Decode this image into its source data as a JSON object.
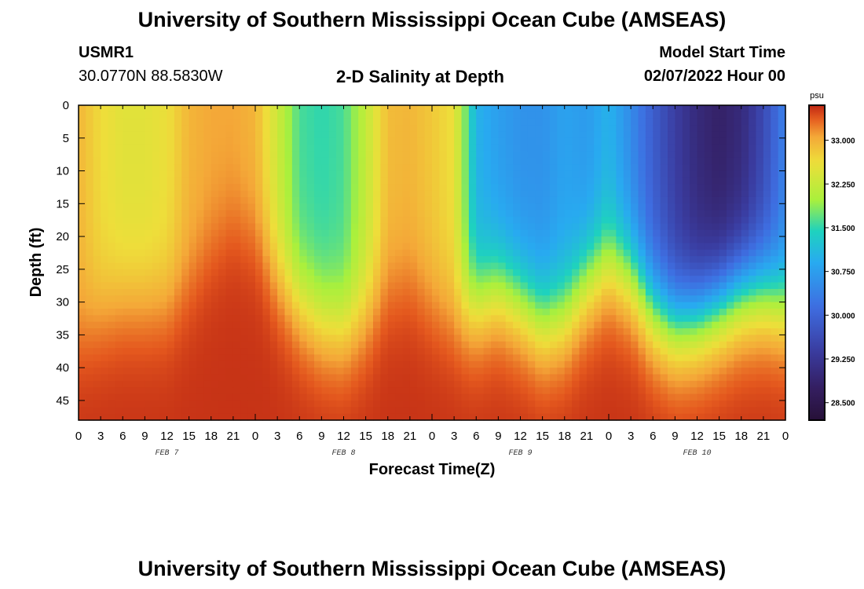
{
  "header": {
    "title": "University of Southern Mississippi Ocean Cube (AMSEAS)",
    "station_id": "USMR1",
    "station_coords": "30.0770N  88.5830W",
    "plot_title": "2-D Salinity at Depth",
    "model_start_label": "Model Start Time",
    "model_start_value": "02/07/2022 Hour 00"
  },
  "footer": {
    "title": "University of Southern Mississippi Ocean Cube (AMSEAS)"
  },
  "chart_data": {
    "type": "heatmap",
    "title": "2-D Salinity at Depth",
    "xlabel": "Forecast Time(Z)",
    "ylabel": "Depth (ft)",
    "x_range_hours": [
      0,
      96
    ],
    "x_tick_labels": [
      "0",
      "3",
      "6",
      "9",
      "12",
      "15",
      "18",
      "21",
      "0",
      "3",
      "6",
      "9",
      "12",
      "15",
      "18",
      "21",
      "0",
      "3",
      "6",
      "9",
      "12",
      "15",
      "18",
      "21",
      "0",
      "3",
      "6",
      "9",
      "12",
      "15",
      "18",
      "21",
      "0"
    ],
    "x_day_labels": [
      {
        "label": "FEB 7",
        "hour": 12
      },
      {
        "label": "FEB 8",
        "hour": 36
      },
      {
        "label": "FEB 9",
        "hour": 60
      },
      {
        "label": "FEB 10",
        "hour": 84
      }
    ],
    "y_range_ft": [
      0,
      48
    ],
    "y_tick_values": [
      0,
      5,
      10,
      15,
      20,
      25,
      30,
      35,
      40,
      45
    ],
    "colorbar": {
      "unit": "psu",
      "min": 28.2,
      "max": 33.6,
      "tick_values": [
        28.5,
        29.25,
        30.0,
        30.75,
        31.5,
        32.25,
        33.0
      ],
      "tick_labels": [
        "28.500",
        "29.250",
        "30.000",
        "30.750",
        "31.500",
        "32.250",
        "33.000"
      ]
    },
    "surface_profile": {
      "hours": [
        0,
        3,
        6,
        9,
        12,
        15,
        18,
        21,
        24,
        27,
        30,
        33,
        36,
        39,
        42,
        45,
        48,
        51,
        54,
        57,
        60,
        63,
        66,
        69,
        72,
        75,
        78,
        81,
        84,
        87,
        90,
        93,
        96
      ],
      "value_psu": [
        32.95,
        32.65,
        32.5,
        32.5,
        32.6,
        32.95,
        33.05,
        33.05,
        32.95,
        32.3,
        31.6,
        31.5,
        31.6,
        32.2,
        32.9,
        32.95,
        32.8,
        32.6,
        31.0,
        30.75,
        30.6,
        30.6,
        30.8,
        30.7,
        31.0,
        30.5,
        29.9,
        29.4,
        29.0,
        28.8,
        29.0,
        29.6,
        30.4
      ]
    },
    "deep_value_psu": 33.55,
    "halocline_center_ft": {
      "hours": [
        0,
        3,
        6,
        9,
        12,
        15,
        18,
        21,
        24,
        27,
        30,
        33,
        36,
        39,
        42,
        45,
        48,
        51,
        54,
        57,
        60,
        63,
        66,
        69,
        72,
        75,
        78,
        81,
        84,
        87,
        90,
        93,
        96
      ],
      "depth": [
        35,
        32,
        30,
        30,
        30,
        27,
        22,
        18,
        20,
        26,
        30,
        33,
        34,
        32,
        28,
        27,
        30,
        32,
        30,
        28,
        30,
        33,
        32,
        27,
        24,
        26,
        31,
        33,
        32,
        30,
        28,
        28,
        30
      ]
    }
  }
}
